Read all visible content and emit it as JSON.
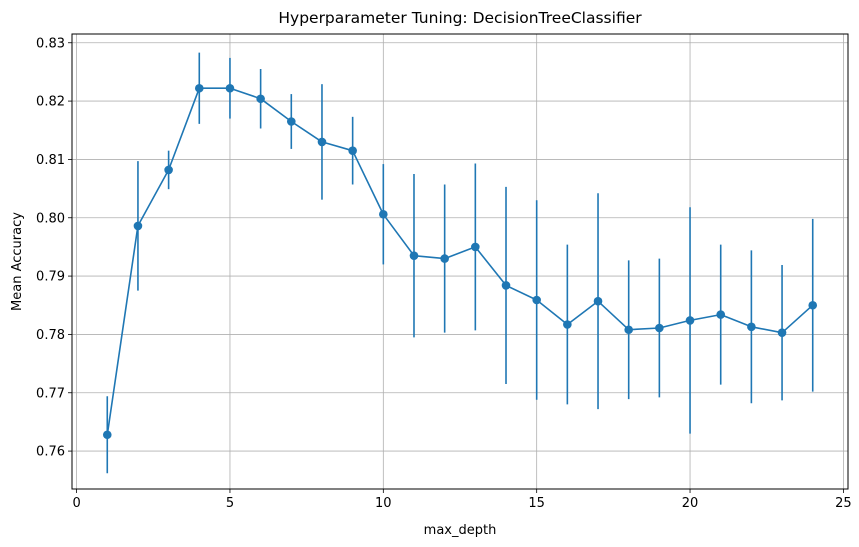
{
  "chart_data": {
    "type": "line",
    "title": "Hyperparameter Tuning: DecisionTreeClassifier",
    "xlabel": "max_depth",
    "ylabel": "Mean Accuracy",
    "xlim": [
      -0.15,
      25.15
    ],
    "ylim": [
      0.7535,
      0.8315
    ],
    "x_ticks": [
      0,
      5,
      10,
      15,
      20,
      25
    ],
    "y_ticks": [
      0.76,
      0.77,
      0.78,
      0.79,
      0.8,
      0.81,
      0.82,
      0.83
    ],
    "x_tick_labels": [
      "0",
      "5",
      "10",
      "15",
      "20",
      "25"
    ],
    "y_tick_labels": [
      "0.76",
      "0.77",
      "0.78",
      "0.79",
      "0.80",
      "0.81",
      "0.82",
      "0.83"
    ],
    "grid": true,
    "color": "#1f77b4",
    "series": [
      {
        "x": [
          1,
          2,
          3,
          4,
          5,
          6,
          7,
          8,
          9,
          10,
          11,
          12,
          13,
          14,
          15,
          16,
          17,
          18,
          19,
          20,
          21,
          22,
          23,
          24
        ],
        "values": [
          0.7628,
          0.7986,
          0.8082,
          0.8222,
          0.8222,
          0.8204,
          0.8165,
          0.813,
          0.8115,
          0.8006,
          0.7935,
          0.793,
          0.795,
          0.7884,
          0.7859,
          0.7817,
          0.7857,
          0.7808,
          0.7811,
          0.7824,
          0.7834,
          0.7813,
          0.7803,
          0.785
        ],
        "error": [
          0.0066,
          0.0111,
          0.0033,
          0.0061,
          0.0052,
          0.0051,
          0.0047,
          0.0099,
          0.0058,
          0.0086,
          0.014,
          0.0127,
          0.0143,
          0.0169,
          0.0171,
          0.0137,
          0.0185,
          0.0119,
          0.0119,
          0.0194,
          0.012,
          0.0131,
          0.0116,
          0.0148
        ]
      }
    ]
  }
}
